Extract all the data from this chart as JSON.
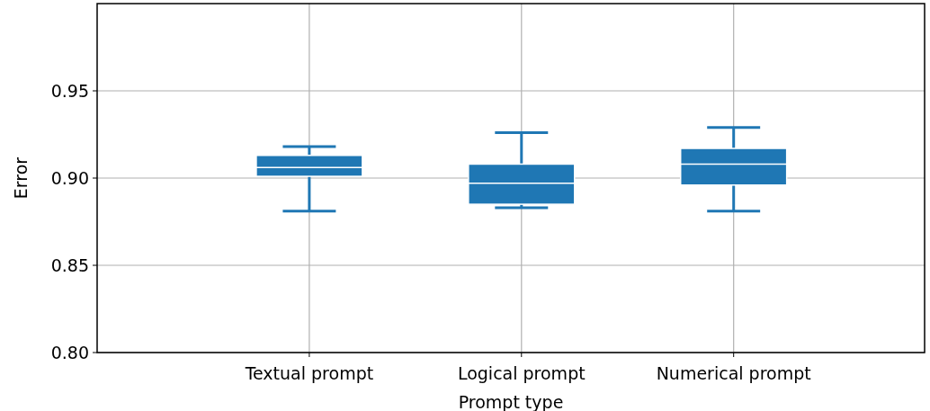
{
  "chart_data": {
    "type": "box",
    "xlabel": "Prompt type",
    "ylabel": "Error",
    "categories": [
      "Textual prompt",
      "Logical prompt",
      "Numerical prompt"
    ],
    "boxes": [
      {
        "low": 0.881,
        "q1": 0.901,
        "median": 0.906,
        "q3": 0.913,
        "high": 0.918
      },
      {
        "low": 0.883,
        "q1": 0.885,
        "median": 0.897,
        "q3": 0.908,
        "high": 0.926
      },
      {
        "low": 0.881,
        "q1": 0.896,
        "median": 0.908,
        "q3": 0.917,
        "high": 0.929
      }
    ],
    "color": "#1f77b4",
    "ylim": [
      0.8,
      1.0
    ],
    "yticks": [
      {
        "value": 0.8,
        "label": "0.80"
      },
      {
        "value": 0.85,
        "label": "0.85"
      },
      {
        "value": 0.9,
        "label": "0.90"
      },
      {
        "value": 0.95,
        "label": "0.95"
      }
    ],
    "grid": true
  }
}
